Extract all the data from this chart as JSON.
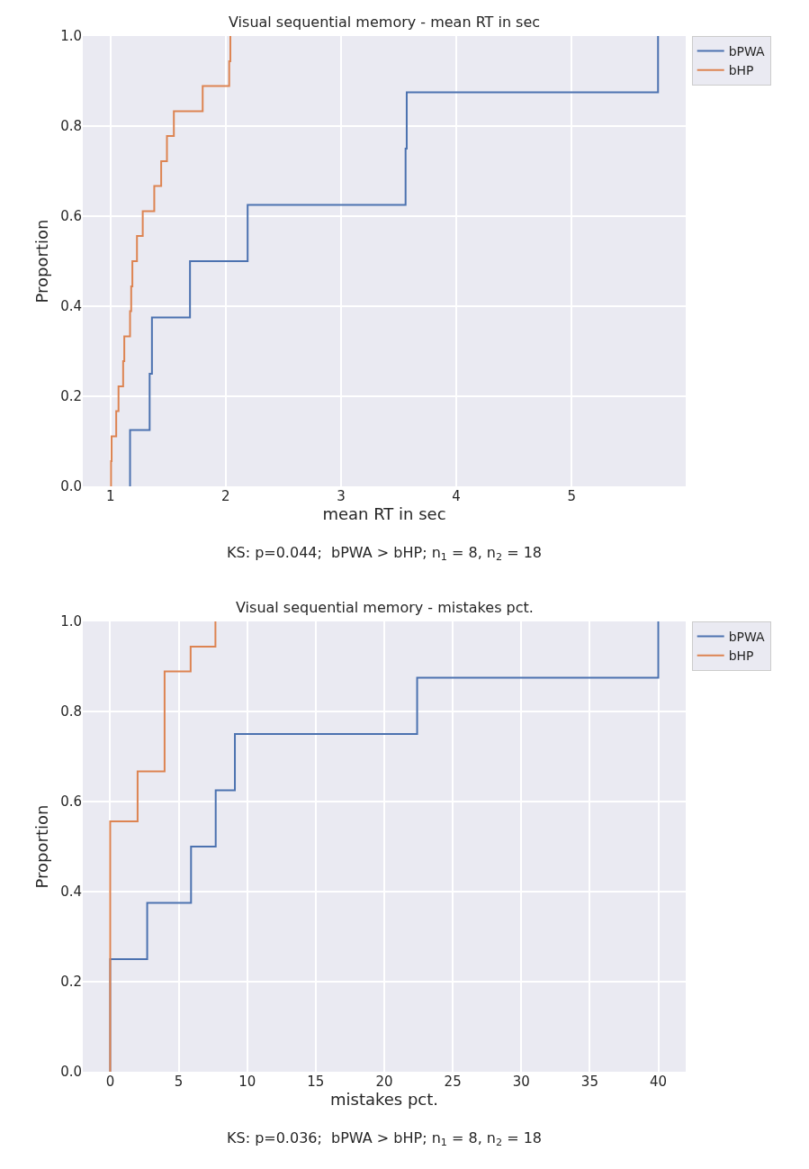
{
  "chart_data": [
    {
      "type": "step",
      "title": "Visual sequential memory - mean RT in sec",
      "xlabel": "mean RT in sec",
      "ylabel": "Proportion",
      "annotations": [
        "KS: p=0.044;  bPWA > bHP; n$_{1}$ = 8, n$_{2}$ = 18"
      ],
      "series": [
        {
          "name": "bPWA",
          "color": "#4c72b0",
          "x": [
            1.17,
            1.17,
            1.34,
            1.36,
            1.69,
            2.19,
            3.56,
            3.57,
            5.75
          ],
          "values": [
            0,
            0.125,
            0.25,
            0.375,
            0.5,
            0.625,
            0.75,
            0.875,
            1.0
          ]
        },
        {
          "name": "bHP",
          "color": "#dd8452",
          "x": [
            1.005,
            1.005,
            1.01,
            1.05,
            1.07,
            1.11,
            1.12,
            1.17,
            1.18,
            1.19,
            1.23,
            1.28,
            1.38,
            1.44,
            1.49,
            1.55,
            1.8,
            2.03,
            2.04
          ],
          "values": [
            0,
            0.056,
            0.111,
            0.167,
            0.222,
            0.278,
            0.333,
            0.389,
            0.444,
            0.5,
            0.556,
            0.611,
            0.667,
            0.722,
            0.778,
            0.833,
            0.889,
            0.944,
            1.0
          ]
        }
      ],
      "xlim": [
        0.76,
        5.99
      ],
      "ylim": [
        0,
        1
      ],
      "xticks": [
        1,
        2,
        3,
        4,
        5
      ],
      "yticks": [
        {
          "value": 0,
          "label": "0.0"
        },
        {
          "value": 0.2,
          "label": "0.2"
        },
        {
          "value": 0.4,
          "label": "0.4"
        },
        {
          "value": 0.6,
          "label": "0.6"
        },
        {
          "value": 0.8,
          "label": "0.8"
        },
        {
          "value": 1,
          "label": "1.0"
        }
      ],
      "grid": true,
      "legend": "top right"
    },
    {
      "type": "step",
      "title": "Visual sequential memory - mistakes pct.",
      "xlabel": "mistakes pct.",
      "ylabel": "Proportion",
      "annotations": [
        "KS: p=0.036;  bPWA > bHP; n$_{1}$ = 8, n$_{2}$ = 18"
      ],
      "series": [
        {
          "name": "bPWA",
          "color": "#4c72b0",
          "x": [
            0,
            0,
            2.7,
            5.9,
            7.7,
            9.1,
            22.4,
            40
          ],
          "values": [
            0,
            0.25,
            0.375,
            0.5,
            0.625,
            0.75,
            0.875,
            1.0
          ]
        },
        {
          "name": "bHP",
          "color": "#dd8452",
          "x": [
            0,
            0,
            2.0,
            3.97,
            5.87,
            7.68
          ],
          "values": [
            0,
            0.556,
            0.667,
            0.889,
            0.944,
            1.0
          ]
        }
      ],
      "xlim": [
        -2,
        42
      ],
      "ylim": [
        0,
        1
      ],
      "xticks": [
        0,
        5,
        10,
        15,
        20,
        25,
        30,
        35,
        40
      ],
      "yticks": [
        {
          "value": 0,
          "label": "0.0"
        },
        {
          "value": 0.2,
          "label": "0.2"
        },
        {
          "value": 0.4,
          "label": "0.4"
        },
        {
          "value": 0.6,
          "label": "0.6"
        },
        {
          "value": 0.8,
          "label": "0.8"
        },
        {
          "value": 1,
          "label": "1.0"
        }
      ],
      "grid": true,
      "legend": "top right"
    }
  ]
}
